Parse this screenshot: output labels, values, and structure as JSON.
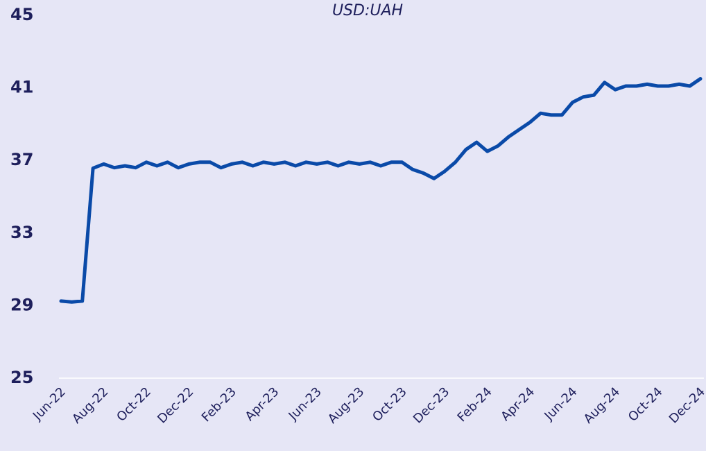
{
  "chart_data": {
    "type": "line",
    "title": "USD:UAH",
    "categories": [
      "Jun-22",
      null,
      null,
      null,
      "Aug-22",
      null,
      null,
      null,
      "Oct-22",
      null,
      null,
      null,
      "Dec-22",
      null,
      null,
      null,
      "Feb-23",
      null,
      null,
      null,
      "Apr-23",
      null,
      null,
      null,
      "Jun-23",
      null,
      null,
      null,
      "Aug-23",
      null,
      null,
      null,
      "Oct-23",
      null,
      null,
      null,
      "Dec-23",
      null,
      null,
      null,
      "Feb-24",
      null,
      null,
      null,
      "Apr-24",
      null,
      null,
      null,
      "Jun-24",
      null,
      null,
      null,
      "Aug-24",
      null,
      null,
      null,
      "Oct-24",
      null,
      null,
      null,
      "Dec-24"
    ],
    "values": [
      29.25,
      29.2,
      29.25,
      36.57,
      36.8,
      36.6,
      36.7,
      36.6,
      36.9,
      36.7,
      36.9,
      36.6,
      36.8,
      36.9,
      36.9,
      36.6,
      36.8,
      36.9,
      36.7,
      36.9,
      36.8,
      36.9,
      36.7,
      36.9,
      36.8,
      36.9,
      36.7,
      36.9,
      36.8,
      36.9,
      36.7,
      36.9,
      36.9,
      36.5,
      36.3,
      36.0,
      36.4,
      36.9,
      37.6,
      38.0,
      37.5,
      37.8,
      38.3,
      38.7,
      39.1,
      39.6,
      39.5,
      39.5,
      40.2,
      40.5,
      40.6,
      41.3,
      40.9,
      41.1,
      41.1,
      41.2,
      41.1,
      41.1,
      41.2,
      41.1,
      41.5
    ],
    "color": "#0a4aa8",
    "ylim": [
      25,
      45
    ],
    "yticks": [
      25,
      29,
      33,
      37,
      41,
      45
    ],
    "grid": false
  }
}
